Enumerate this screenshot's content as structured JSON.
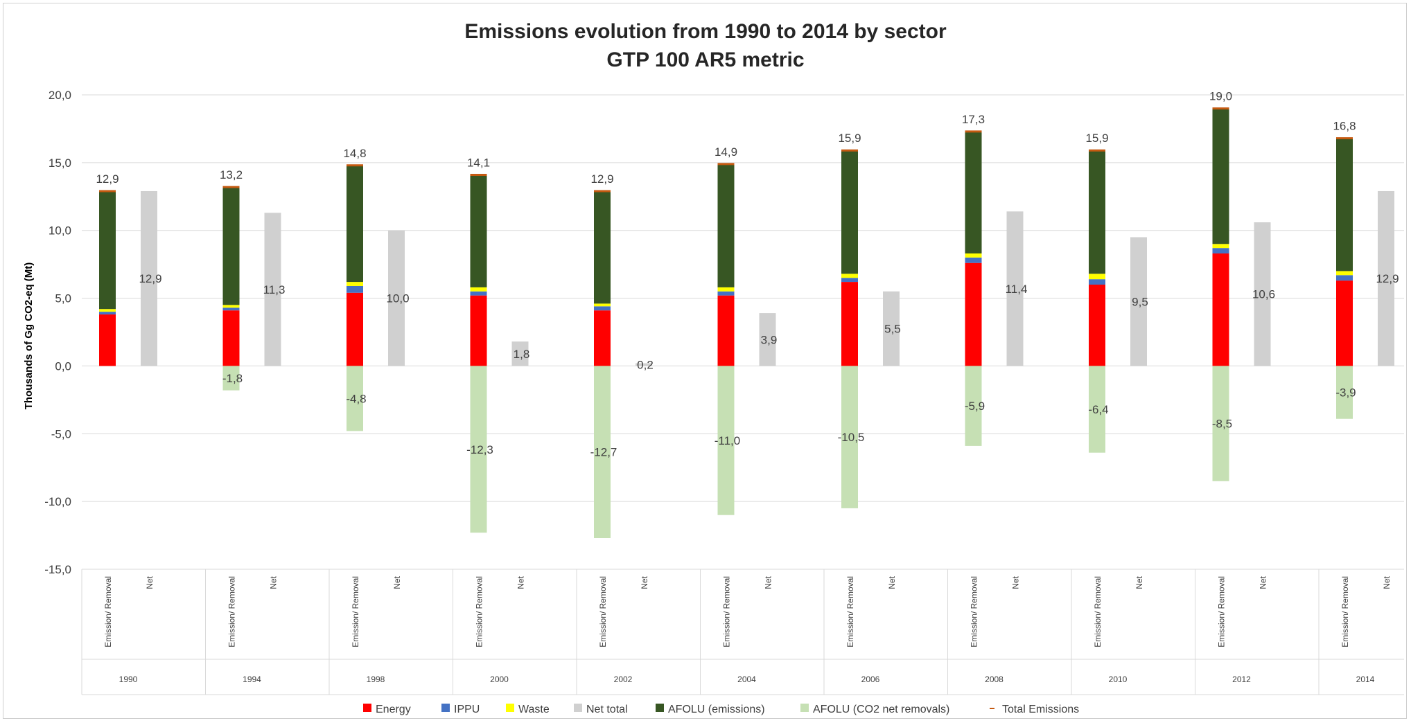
{
  "chart_data": {
    "type": "bar",
    "title_lines": [
      "Emissions evolution from 1990 to 2014 by sector",
      "GTP 100 AR5 metric"
    ],
    "ylabel": "Thousands of Gg CO2-eq (Mt)",
    "ylim": [
      -15,
      20
    ],
    "yticks": [
      "20,0",
      "15,0",
      "10,0",
      "5,0",
      "0,0",
      "-5,0",
      "-10,0",
      "-15,0"
    ],
    "ytick_values": [
      20,
      15,
      10,
      5,
      0,
      -5,
      -10,
      -15
    ],
    "grid": true,
    "legend_position": "bottom",
    "categories": [
      "1990",
      "1994",
      "1998",
      "2000",
      "2002",
      "2004",
      "2006",
      "2008",
      "2010",
      "2012",
      "2014"
    ],
    "sub_categories": [
      "Emission/ Removal",
      "Net"
    ],
    "series": [
      {
        "name": "Energy",
        "color": "#ff0000",
        "values": [
          3.8,
          4.1,
          5.4,
          5.2,
          4.1,
          5.2,
          6.2,
          7.6,
          6.0,
          8.3,
          6.3
        ]
      },
      {
        "name": "IPPU",
        "color": "#4472c4",
        "values": [
          0.2,
          0.2,
          0.5,
          0.3,
          0.3,
          0.3,
          0.3,
          0.4,
          0.4,
          0.4,
          0.4
        ]
      },
      {
        "name": "Waste",
        "color": "#ffff00",
        "values": [
          0.2,
          0.2,
          0.3,
          0.3,
          0.2,
          0.3,
          0.3,
          0.3,
          0.4,
          0.3,
          0.3
        ]
      },
      {
        "name": "Net total",
        "color": "#d0d0d0",
        "values": [
          12.9,
          11.3,
          10.0,
          1.8,
          0.2,
          3.9,
          5.5,
          11.4,
          9.5,
          10.6,
          12.9
        ]
      },
      {
        "name": "AFOLU (emissions)",
        "color": "#375623",
        "values": [
          8.7,
          8.7,
          8.6,
          8.3,
          8.3,
          9.1,
          9.1,
          9.0,
          9.1,
          10.0,
          9.8
        ]
      },
      {
        "name": "AFOLU (CO2 net removals)",
        "color": "#c6e0b4",
        "values": [
          0,
          -1.8,
          -4.8,
          -12.3,
          -12.7,
          -11.0,
          -10.5,
          -5.9,
          -6.4,
          -8.5,
          -3.9
        ]
      },
      {
        "name": "Total Emissions",
        "color": "#c55a11",
        "values": [
          12.9,
          13.2,
          14.8,
          14.1,
          12.9,
          14.9,
          15.9,
          17.3,
          15.9,
          19.0,
          16.8
        ]
      }
    ],
    "labels": {
      "total": [
        "12,9",
        "13,2",
        "14,8",
        "14,1",
        "12,9",
        "14,9",
        "15,9",
        "17,3",
        "15,9",
        "19,0",
        "16,8"
      ],
      "net": [
        "12,9",
        "11,3",
        "10,0",
        "1,8",
        "0,2",
        "3,9",
        "5,5",
        "11,4",
        "9,5",
        "10,6",
        "12,9"
      ],
      "removal": [
        "",
        "-1,8",
        "-4,8",
        "-12,3",
        "-12,7",
        "-11,0",
        "-10,5",
        "-5,9",
        "-6,4",
        "-8,5",
        "-3,9"
      ]
    }
  }
}
